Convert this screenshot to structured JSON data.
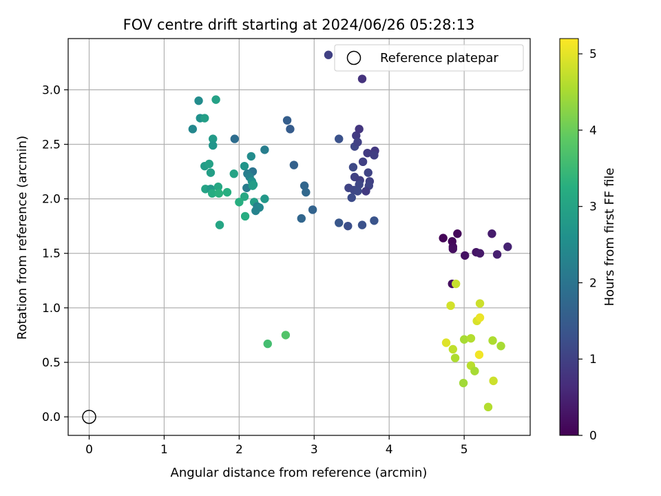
{
  "chart_data": {
    "type": "scatter",
    "title": "FOV centre drift starting at 2024/06/26 05:28:13",
    "xlabel": "Angular distance from reference (arcmin)",
    "ylabel": "Rotation from reference (arcmin)",
    "xlim": [
      -0.28,
      5.88
    ],
    "ylim": [
      -0.17,
      3.47
    ],
    "xticks": [
      0,
      1,
      2,
      3,
      4,
      5
    ],
    "xtick_labels": [
      "0",
      "1",
      "2",
      "3",
      "4",
      "5"
    ],
    "yticks": [
      0.0,
      0.5,
      1.0,
      1.5,
      2.0,
      2.5,
      3.0
    ],
    "ytick_labels": [
      "0.0",
      "0.5",
      "1.0",
      "1.5",
      "2.0",
      "2.5",
      "3.0"
    ],
    "grid": true,
    "legend": {
      "position": "upper right",
      "entries": [
        "Reference platepar"
      ]
    },
    "reference_point": {
      "x": 0,
      "y": 0
    },
    "colorbar": {
      "label": "Hours from first FF file",
      "colormap": "viridis",
      "range": [
        0,
        5.2
      ],
      "ticks": [
        0,
        1,
        2,
        3,
        4,
        5
      ],
      "tick_labels": [
        "0",
        "1",
        "2",
        "3",
        "4",
        "5"
      ]
    },
    "points": [
      [
        4.72,
        1.64,
        0.05
      ],
      [
        4.84,
        1.61,
        0.1
      ],
      [
        4.85,
        1.56,
        0.15
      ],
      [
        4.85,
        1.54,
        0.2
      ],
      [
        4.91,
        1.68,
        0.1
      ],
      [
        5.01,
        1.48,
        0.25
      ],
      [
        5.16,
        1.51,
        0.3
      ],
      [
        5.21,
        1.5,
        0.35
      ],
      [
        5.37,
        1.68,
        0.4
      ],
      [
        5.44,
        1.49,
        0.45
      ],
      [
        5.58,
        1.56,
        0.5
      ],
      [
        4.84,
        1.22,
        0.2
      ],
      [
        3.19,
        3.32,
        1.0
      ],
      [
        3.64,
        3.1,
        0.75
      ],
      [
        3.33,
        2.55,
        1.3
      ],
      [
        3.54,
        2.48,
        1.1
      ],
      [
        3.56,
        2.58,
        0.9
      ],
      [
        3.6,
        2.64,
        0.8
      ],
      [
        3.58,
        2.52,
        1.0
      ],
      [
        3.71,
        2.42,
        0.9
      ],
      [
        3.81,
        2.44,
        0.85
      ],
      [
        3.8,
        2.4,
        0.95
      ],
      [
        3.65,
        2.34,
        1.0
      ],
      [
        3.52,
        2.29,
        1.15
      ],
      [
        3.72,
        2.24,
        1.05
      ],
      [
        3.54,
        2.2,
        1.0
      ],
      [
        3.61,
        2.17,
        0.95
      ],
      [
        3.6,
        2.13,
        1.1
      ],
      [
        3.74,
        2.16,
        1.0
      ],
      [
        3.73,
        2.12,
        1.05
      ],
      [
        3.46,
        2.1,
        1.05
      ],
      [
        3.53,
        2.08,
        1.1
      ],
      [
        3.58,
        2.07,
        1.15
      ],
      [
        3.69,
        2.07,
        0.9
      ],
      [
        3.5,
        2.01,
        1.2
      ],
      [
        3.33,
        1.78,
        1.4
      ],
      [
        3.45,
        1.75,
        1.25
      ],
      [
        3.64,
        1.76,
        1.3
      ],
      [
        3.8,
        1.8,
        1.35
      ],
      [
        2.64,
        2.72,
        1.55
      ],
      [
        2.68,
        2.64,
        1.5
      ],
      [
        2.73,
        2.31,
        1.6
      ],
      [
        2.87,
        2.12,
        1.7
      ],
      [
        2.89,
        2.06,
        1.75
      ],
      [
        2.83,
        1.82,
        1.7
      ],
      [
        2.98,
        1.9,
        1.65
      ],
      [
        1.94,
        2.55,
        1.85
      ],
      [
        2.34,
        2.45,
        2.2
      ],
      [
        2.16,
        2.39,
        2.5
      ],
      [
        2.07,
        2.3,
        2.7
      ],
      [
        2.18,
        2.25,
        2.0
      ],
      [
        2.11,
        2.23,
        2.2
      ],
      [
        2.14,
        2.2,
        2.3
      ],
      [
        2.17,
        2.16,
        2.6
      ],
      [
        2.1,
        2.1,
        2.15
      ],
      [
        2.19,
        2.13,
        2.8
      ],
      [
        2.18,
        2.12,
        2.85
      ],
      [
        1.93,
        2.23,
        3.0
      ],
      [
        2.2,
        1.97,
        2.9
      ],
      [
        2.24,
        1.93,
        2.25
      ],
      [
        2.27,
        1.92,
        2.4
      ],
      [
        2.22,
        1.89,
        2.3
      ],
      [
        2.34,
        2.0,
        2.75
      ],
      [
        2.07,
        2.02,
        3.1
      ],
      [
        2.0,
        1.97,
        3.25
      ],
      [
        2.08,
        1.84,
        3.2
      ],
      [
        1.38,
        2.64,
        2.4
      ],
      [
        1.46,
        2.9,
        2.5
      ],
      [
        1.48,
        2.74,
        2.6
      ],
      [
        1.54,
        2.74,
        2.9
      ],
      [
        1.69,
        2.91,
        2.95
      ],
      [
        1.65,
        2.55,
        2.8
      ],
      [
        1.65,
        2.49,
        2.7
      ],
      [
        1.54,
        2.3,
        2.85
      ],
      [
        1.6,
        2.32,
        2.95
      ],
      [
        1.62,
        2.24,
        2.9
      ],
      [
        1.55,
        2.09,
        3.0
      ],
      [
        1.62,
        2.09,
        2.8
      ],
      [
        1.64,
        2.05,
        3.2
      ],
      [
        1.72,
        2.11,
        3.1
      ],
      [
        1.73,
        2.05,
        3.3
      ],
      [
        1.84,
        2.06,
        3.25
      ],
      [
        1.74,
        1.76,
        3.05
      ],
      [
        2.38,
        0.67,
        3.6
      ],
      [
        2.62,
        0.75,
        3.75
      ],
      [
        4.89,
        1.22,
        4.75
      ],
      [
        4.82,
        1.02,
        4.85
      ],
      [
        5.21,
        1.04,
        4.8
      ],
      [
        5.17,
        0.88,
        4.9
      ],
      [
        5.21,
        0.91,
        5.05
      ],
      [
        4.76,
        0.68,
        4.95
      ],
      [
        4.85,
        0.62,
        4.7
      ],
      [
        5.0,
        0.71,
        4.5
      ],
      [
        5.09,
        0.72,
        4.6
      ],
      [
        4.88,
        0.54,
        4.55
      ],
      [
        5.2,
        0.57,
        5.1
      ],
      [
        5.09,
        0.47,
        4.65
      ],
      [
        5.14,
        0.42,
        4.5
      ],
      [
        4.99,
        0.31,
        4.45
      ],
      [
        5.38,
        0.7,
        4.55
      ],
      [
        5.49,
        0.65,
        4.5
      ],
      [
        5.39,
        0.33,
        4.8
      ],
      [
        5.32,
        0.09,
        4.6
      ]
    ]
  }
}
